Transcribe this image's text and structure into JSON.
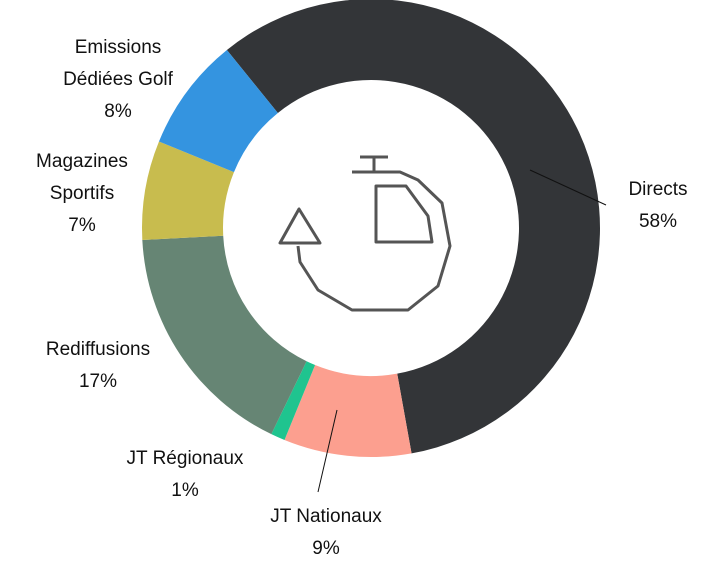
{
  "chart_data": {
    "type": "donut",
    "categories": [
      "Directs",
      "JT Nationaux",
      "JT Régionaux",
      "Rediffusions",
      "Magazines Sportifs",
      "Emissions Dédiées Golf"
    ],
    "values": [
      58,
      9,
      1,
      17,
      7,
      8
    ],
    "value_labels": [
      "58%",
      "9%",
      "1%",
      "17%",
      "7%",
      "8%"
    ],
    "colors": [
      "#333538",
      "#fc9f8f",
      "#1fc48f",
      "#668574",
      "#c8bc4e",
      "#3494e0"
    ]
  }
}
